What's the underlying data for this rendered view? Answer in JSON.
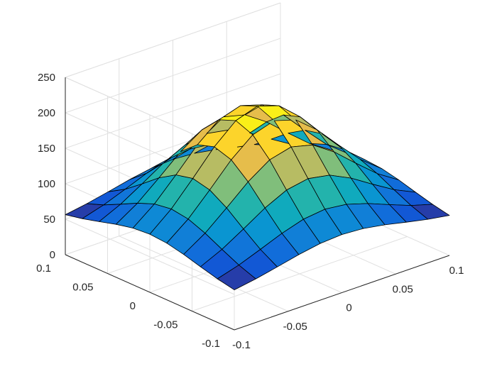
{
  "chart_data": {
    "type": "surface",
    "title": "",
    "xlabel": "",
    "ylabel": "",
    "zlabel": "",
    "x": [
      -0.1,
      -0.08,
      -0.06,
      -0.04,
      -0.02,
      0,
      0.02,
      0.04,
      0.06,
      0.08,
      0.1
    ],
    "y": [
      -0.1,
      -0.08,
      -0.06,
      -0.04,
      -0.02,
      0,
      0.02,
      0.04,
      0.06,
      0.08,
      0.1
    ],
    "z_model": "z = 50 + 160 * exp(-(x^2 + y^2) / 0.0062)",
    "xlim": [
      -0.1,
      0.1
    ],
    "ylim": [
      -0.1,
      0.1
    ],
    "zlim": [
      0,
      250
    ],
    "x_ticks": [
      "-0.1",
      "-0.05",
      "0",
      "0.05",
      "0.1"
    ],
    "y_ticks": [
      "-0.1",
      "-0.05",
      "0",
      "0.05",
      "0.1"
    ],
    "z_ticks": [
      "0",
      "50",
      "100",
      "150",
      "200",
      "250"
    ],
    "grid": true,
    "colormap": "parula",
    "edge_color": "#000000"
  }
}
